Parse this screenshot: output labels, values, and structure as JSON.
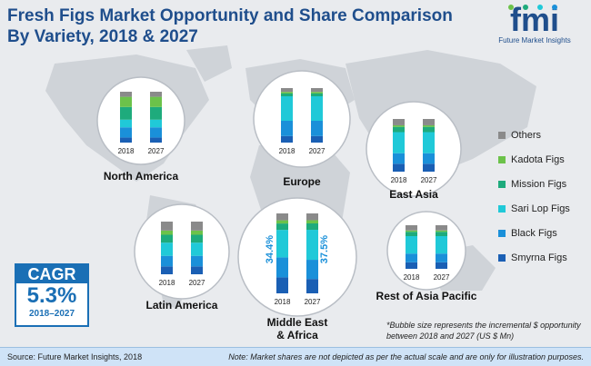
{
  "title": "Fresh Figs Market Opportunity and Share Comparison By Variety, 2018 & 2027",
  "logo": {
    "text": "fmi",
    "subtitle": "Future Market Insights"
  },
  "colors": {
    "Others": "#8a8a8a",
    "Kadota Figs": "#6cc24a",
    "Mission Figs": "#1eab7c",
    "Sari Lop Figs": "#20c9d8",
    "Black Figs": "#1a90d9",
    "Smyrna Figs": "#1a5fb4",
    "accent": "#1a6fb5",
    "title": "#1f4e8c"
  },
  "chart_data": {
    "type": "bar",
    "stacked": true,
    "series_names": [
      "Smyrna Figs",
      "Black Figs",
      "Sari Lop Figs",
      "Mission Figs",
      "Kadota Figs",
      "Others"
    ],
    "regions": [
      {
        "name": "North America",
        "categories": [
          "2018",
          "2027"
        ],
        "values": [
          [
            10,
            20,
            15,
            25,
            20,
            10
          ],
          [
            10,
            20,
            15,
            25,
            20,
            10
          ]
        ]
      },
      {
        "name": "Europe",
        "categories": [
          "2018",
          "2027"
        ],
        "values": [
          [
            12,
            28,
            45,
            5,
            3,
            7
          ],
          [
            12,
            28,
            45,
            5,
            3,
            7
          ]
        ]
      },
      {
        "name": "East Asia",
        "categories": [
          "2018",
          "2027"
        ],
        "values": [
          [
            15,
            20,
            40,
            10,
            3,
            12
          ],
          [
            15,
            20,
            40,
            10,
            3,
            12
          ]
        ]
      },
      {
        "name": "Latin America",
        "categories": [
          "2018",
          "2027"
        ],
        "values": [
          [
            15,
            20,
            25,
            15,
            8,
            17
          ],
          [
            15,
            20,
            25,
            15,
            8,
            17
          ]
        ]
      },
      {
        "name": "Middle East & Africa",
        "categories": [
          "2018",
          "2027"
        ],
        "values": [
          [
            20,
            25,
            34.4,
            8,
            4,
            8.6
          ],
          [
            18,
            24,
            37.5,
            8,
            4,
            8.5
          ]
        ],
        "annotations": [
          "34.4%",
          "37.5%"
        ]
      },
      {
        "name": "Rest of Asia Pacific",
        "categories": [
          "2018",
          "2027"
        ],
        "values": [
          [
            15,
            20,
            40,
            10,
            3,
            12
          ],
          [
            15,
            20,
            40,
            10,
            3,
            12
          ]
        ]
      }
    ]
  },
  "legend": [
    "Others",
    "Kadota Figs",
    "Mission Figs",
    "Sari Lop Figs",
    "Black Figs",
    "Smyrna Figs"
  ],
  "cagr": {
    "label": "CAGR",
    "value": "5.3%",
    "period": "2018–2027"
  },
  "note": "*Bubble size represents the incremental $ opportunity between 2018 and 2027 (US $ Mn)",
  "footer": {
    "source": "Source: Future Market Insights, 2018",
    "disclaimer": "Note: Market shares are not depicted as per the actual scale and are only for illustration purposes."
  }
}
